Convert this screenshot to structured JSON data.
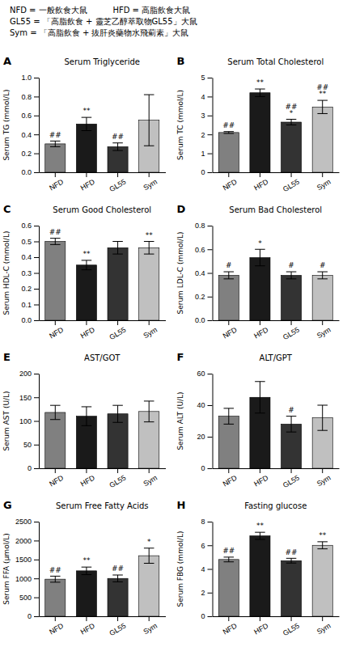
{
  "annotations": [
    "NFD = 一般飲食大鼠          HFD = 高脂飲食大鼠",
    "GL55 = 「高脂飲食 + 靈芝乙醇萃取物GL55」大鼠",
    "Sym = 「高脂飲食 + 抜肝炎藥物水飛薊素」大鼠"
  ],
  "chart_data": [
    {
      "type": "bar",
      "panel_label": "A",
      "title": "Serum Triglyceride",
      "ylabel": "Serum TG (mmol/L)",
      "categories": [
        "NFD",
        "HFD",
        "GL55",
        "Sym"
      ],
      "colors": [
        "#808080",
        "#1a1a1a",
        "#333333",
        "#c0c0c0"
      ],
      "values": [
        0.3,
        0.51,
        0.27,
        0.55
      ],
      "errors": [
        0.03,
        0.07,
        0.04,
        0.27
      ],
      "sig_labels": [
        [
          "##"
        ],
        [
          "**"
        ],
        [
          "##"
        ],
        null
      ],
      "ylim": [
        0,
        1.0
      ],
      "yticks": [
        {
          "value": 0,
          "label": "0.0"
        },
        0.2,
        0.4,
        0.6,
        0.8,
        {
          "value": 1.0,
          "label": "1.0"
        }
      ],
      "grid": false
    },
    {
      "type": "bar",
      "panel_label": "B",
      "title": "Serum Total Cholesterol",
      "ylabel": "Serum TC (mmol/L)",
      "categories": [
        "NFD",
        "HFD",
        "GL55",
        "Sym"
      ],
      "colors": [
        "#808080",
        "#1a1a1a",
        "#333333",
        "#c0c0c0"
      ],
      "values": [
        2.1,
        4.2,
        2.65,
        3.45
      ],
      "errors": [
        0.05,
        0.2,
        0.15,
        0.35
      ],
      "sig_labels": [
        [
          "##"
        ],
        [
          "**"
        ],
        [
          "*",
          "##"
        ],
        [
          "**",
          "##"
        ]
      ],
      "ylim": [
        0,
        5
      ],
      "yticks": [
        0,
        1,
        2,
        3,
        4,
        5
      ],
      "grid": false
    },
    {
      "type": "bar",
      "panel_label": "C",
      "title": "Serum Good Cholesterol",
      "ylabel": "Serum HDL-C (mmol/L)",
      "categories": [
        "NFD",
        "HFD",
        "GL55",
        "Sym"
      ],
      "colors": [
        "#808080",
        "#1a1a1a",
        "#333333",
        "#c0c0c0"
      ],
      "values": [
        0.5,
        0.35,
        0.46,
        0.46
      ],
      "errors": [
        0.02,
        0.03,
        0.04,
        0.04
      ],
      "sig_labels": [
        [
          "##"
        ],
        [
          "**"
        ],
        null,
        [
          "**"
        ]
      ],
      "ylim": [
        0,
        0.6
      ],
      "yticks": [
        {
          "value": 0,
          "label": "0.0"
        },
        0.1,
        0.2,
        0.3,
        0.4,
        0.5,
        0.6
      ],
      "grid": false
    },
    {
      "type": "bar",
      "panel_label": "D",
      "title": "Serum Bad Cholesterol",
      "ylabel": "Serum LDL-C (mmol/L)",
      "categories": [
        "NFD",
        "HFD",
        "GL55",
        "Sym"
      ],
      "colors": [
        "#808080",
        "#1a1a1a",
        "#333333",
        "#c0c0c0"
      ],
      "values": [
        0.38,
        0.53,
        0.38,
        0.38
      ],
      "errors": [
        0.03,
        0.07,
        0.03,
        0.03
      ],
      "sig_labels": [
        [
          "#"
        ],
        [
          "*"
        ],
        [
          "#"
        ],
        [
          "#"
        ]
      ],
      "ylim": [
        0,
        0.8
      ],
      "yticks": [
        {
          "value": 0,
          "label": "0.0"
        },
        0.2,
        0.4,
        0.6,
        0.8
      ],
      "grid": false
    },
    {
      "type": "bar",
      "panel_label": "E",
      "title": "AST/GOT",
      "ylabel": "Serum AST (U/L)",
      "categories": [
        "NFD",
        "HFD",
        "GL55",
        "Sym"
      ],
      "colors": [
        "#808080",
        "#1a1a1a",
        "#333333",
        "#c0c0c0"
      ],
      "values": [
        118,
        110,
        115,
        120
      ],
      "errors": [
        15,
        20,
        18,
        22
      ],
      "sig_labels": [
        null,
        null,
        null,
        null
      ],
      "ylim": [
        0,
        200
      ],
      "yticks": [
        0,
        50,
        100,
        150,
        200
      ],
      "grid": false
    },
    {
      "type": "bar",
      "panel_label": "F",
      "title": "ALT/GPT",
      "ylabel": "Serum ALT (U/L)",
      "categories": [
        "NFD",
        "HFD",
        "GL55",
        "Sym"
      ],
      "colors": [
        "#808080",
        "#1a1a1a",
        "#333333",
        "#c0c0c0"
      ],
      "values": [
        33,
        45,
        28,
        32
      ],
      "errors": [
        5,
        10,
        5,
        8
      ],
      "sig_labels": [
        null,
        null,
        [
          "#"
        ],
        null
      ],
      "ylim": [
        0,
        60
      ],
      "yticks": [
        0,
        20,
        40,
        60
      ],
      "grid": false
    },
    {
      "type": "bar",
      "panel_label": "G",
      "title": "Serum Free Fatty Acids",
      "ylabel": "Serum FFA (μmol/L)",
      "categories": [
        "NFD",
        "HFD",
        "GL55",
        "Sym"
      ],
      "colors": [
        "#808080",
        "#1a1a1a",
        "#333333",
        "#c0c0c0"
      ],
      "values": [
        980,
        1200,
        1000,
        1600
      ],
      "errors": [
        80,
        100,
        90,
        200
      ],
      "sig_labels": [
        [
          "##"
        ],
        [
          "**"
        ],
        [
          "##"
        ],
        [
          "*"
        ]
      ],
      "ylim": [
        0,
        2500
      ],
      "yticks": [
        0,
        500,
        1000,
        1500,
        2000,
        2500
      ],
      "grid": false
    },
    {
      "type": "bar",
      "panel_label": "H",
      "title": "Fasting glucose",
      "ylabel": "Serum FBG (mmol/L)",
      "categories": [
        "NFD",
        "HFD",
        "GL55",
        "Sym"
      ],
      "colors": [
        "#808080",
        "#1a1a1a",
        "#333333",
        "#c0c0c0"
      ],
      "values": [
        4.8,
        6.8,
        4.7,
        6.0
      ],
      "errors": [
        0.2,
        0.3,
        0.2,
        0.3
      ],
      "sig_labels": [
        [
          "##"
        ],
        [
          "**"
        ],
        [
          "##"
        ],
        [
          "**"
        ]
      ],
      "ylim": [
        0,
        8
      ],
      "yticks": [
        0,
        2,
        4,
        6,
        8
      ],
      "grid": false
    }
  ]
}
